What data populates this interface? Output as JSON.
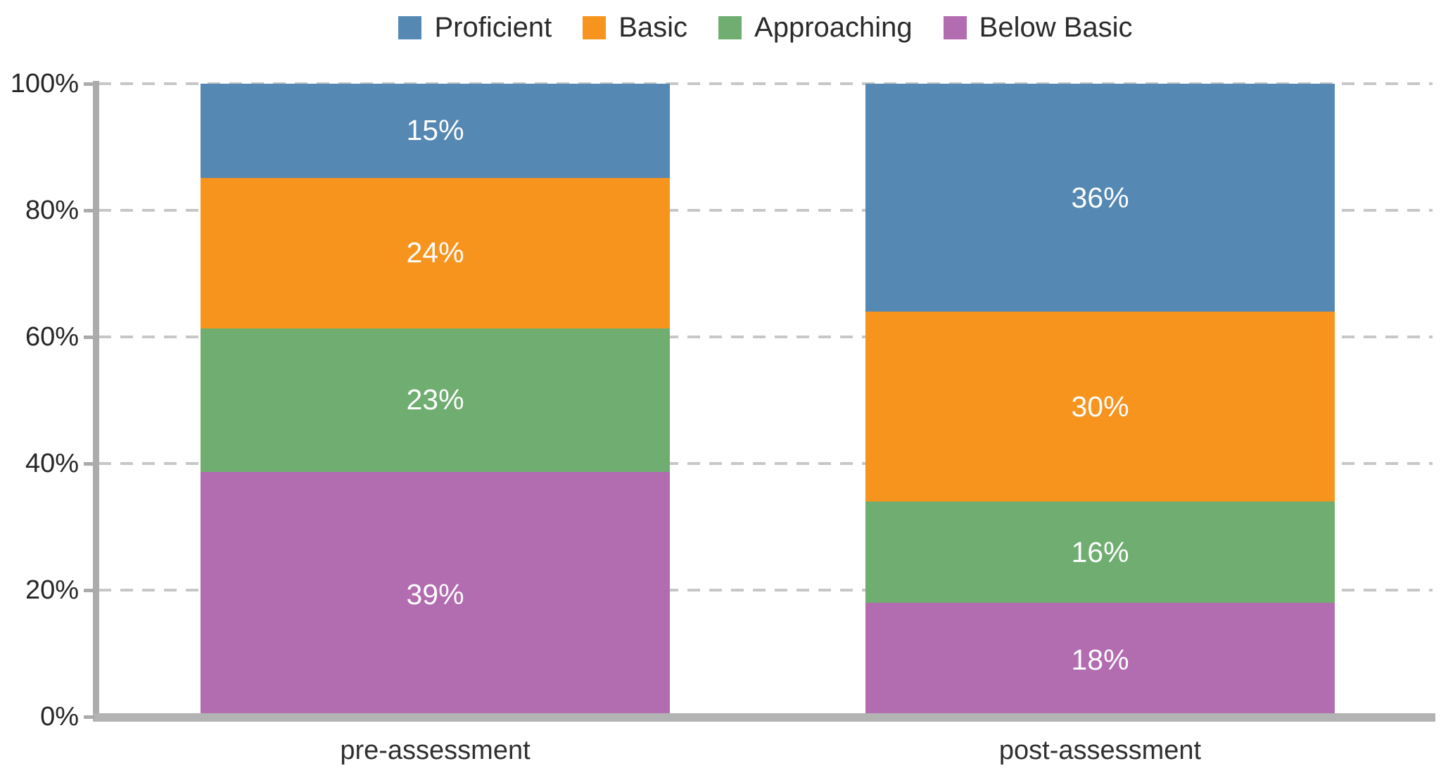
{
  "chart_data": {
    "type": "bar",
    "variant": "100-percent-stacked-column",
    "title": "",
    "xlabel": "",
    "ylabel": "",
    "categories": [
      "pre-assessment",
      "post-assessment"
    ],
    "series": [
      {
        "name": "Proficient",
        "color": "#5588b2",
        "values": [
          15,
          36
        ]
      },
      {
        "name": "Basic",
        "color": "#f7941e",
        "values": [
          24,
          30
        ]
      },
      {
        "name": "Approaching",
        "color": "#70ad71",
        "values": [
          23,
          16
        ]
      },
      {
        "name": "Below Basic",
        "color": "#b26cb0",
        "values": [
          39,
          18
        ]
      }
    ],
    "value_labels": [
      [
        "15%",
        "24%",
        "23%",
        "39%"
      ],
      [
        "36%",
        "30%",
        "16%",
        "18%"
      ]
    ],
    "y_ticks": [
      "0%",
      "20%",
      "40%",
      "60%",
      "80%",
      "100%"
    ],
    "y_tick_values": [
      0,
      20,
      40,
      60,
      80,
      100
    ],
    "ylim": [
      0,
      100
    ],
    "grid": "horizontal-dashed",
    "legend_position": "top-center",
    "stack_order_top_to_bottom": [
      "Proficient",
      "Basic",
      "Approaching",
      "Below Basic"
    ]
  },
  "colors": {
    "axis_line": "#ababab",
    "gridline": "#c7c7c7",
    "tick_text": "#262626",
    "legend_text": "#2b2b2b",
    "segment_label_text": "#fdfdfe",
    "background": "#ffffff"
  }
}
